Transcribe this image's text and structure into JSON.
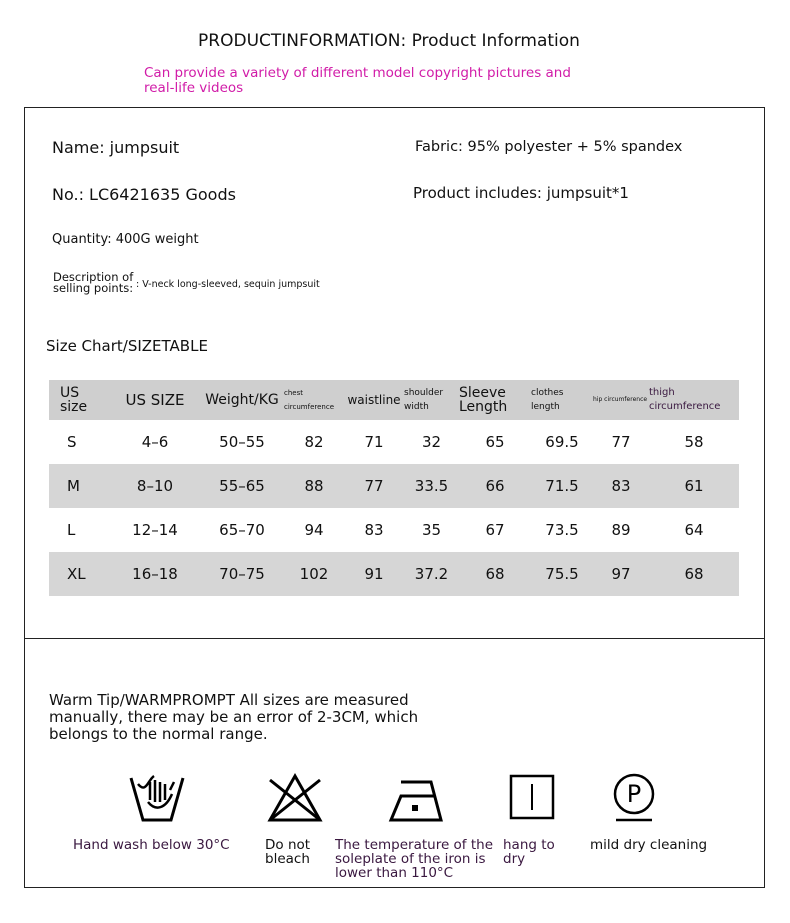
{
  "header": {
    "title": "PRODUCTINFORMATION: Product Information",
    "subtitle": "Can provide a variety of different model copyright pictures and real-life videos"
  },
  "info": {
    "name": "Name: jumpsuit",
    "fabric": "Fabric: 95% polyester + 5% spandex",
    "number": "No.: LC6421635 Goods",
    "includes": "Product includes: jumpsuit*1",
    "quantity": "Quantity: 400G weight",
    "description_label_1": "Description of",
    "description_label_2": "selling points:",
    "description_value": ": V-neck long-sleeved, sequin jumpsuit"
  },
  "size_chart": {
    "title": "Size Chart/SIZETABLE",
    "headers": [
      "US size",
      "US SIZE",
      "Weight/KG",
      "chest circumference",
      "waistline",
      "shoulder width",
      "Sleeve Length",
      "clothes length",
      "hip circumference",
      "thigh circumference"
    ],
    "rows": [
      [
        "S",
        "4–6",
        "50–55",
        "82",
        "71",
        "32",
        "65",
        "69.5",
        "77",
        "58"
      ],
      [
        "M",
        "8–10",
        "55–65",
        "88",
        "77",
        "33.5",
        "66",
        "71.5",
        "83",
        "61"
      ],
      [
        "L",
        "12–14",
        "65–70",
        "94",
        "83",
        "35",
        "67",
        "73.5",
        "89",
        "64"
      ],
      [
        "XL",
        "16–18",
        "70–75",
        "102",
        "91",
        "37.2",
        "68",
        "75.5",
        "97",
        "68"
      ]
    ]
  },
  "warm_tip": "Warm Tip/WARMPROMPT All sizes are measured manually, there may be an error of 2-3CM, which belongs to the normal range.",
  "care": [
    {
      "icon": "hand-wash-icon",
      "label": "Hand wash below 30°C"
    },
    {
      "icon": "no-bleach-icon",
      "label": "Do not bleach"
    },
    {
      "icon": "iron-low-icon",
      "label": "The temperature of the soleplate of the iron is lower than 110°C"
    },
    {
      "icon": "hang-dry-icon",
      "label": "hang to dry"
    },
    {
      "icon": "dry-clean-icon",
      "label": "mild dry cleaning"
    }
  ],
  "colors": {
    "subtitle": "#d11ca8",
    "table_gray": "#d6d6d6"
  }
}
